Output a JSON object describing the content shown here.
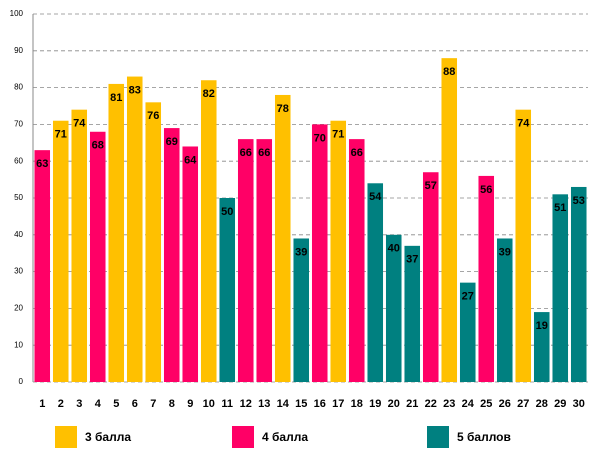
{
  "chart_data": {
    "type": "bar",
    "categories": [
      "1",
      "2",
      "3",
      "4",
      "5",
      "6",
      "7",
      "8",
      "9",
      "10",
      "11",
      "12",
      "13",
      "14",
      "15",
      "16",
      "17",
      "18",
      "19",
      "20",
      "21",
      "22",
      "23",
      "24",
      "25",
      "26",
      "27",
      "28",
      "29",
      "30"
    ],
    "series": [
      {
        "name": "3 балла",
        "color": "#ffc000",
        "values": [
          null,
          71,
          74,
          null,
          81,
          83,
          76,
          null,
          null,
          82,
          null,
          null,
          null,
          78,
          null,
          null,
          71,
          null,
          null,
          null,
          null,
          null,
          88,
          null,
          null,
          null,
          74,
          null,
          null,
          null
        ]
      },
      {
        "name": "4 балла",
        "color": "#ff0066",
        "values": [
          63,
          null,
          null,
          68,
          null,
          null,
          null,
          69,
          64,
          null,
          null,
          66,
          66,
          null,
          null,
          70,
          null,
          66,
          null,
          null,
          null,
          57,
          null,
          null,
          56,
          null,
          null,
          null,
          null,
          null
        ]
      },
      {
        "name": "5 баллов",
        "color": "#008080",
        "values": [
          null,
          null,
          null,
          null,
          null,
          null,
          null,
          null,
          null,
          null,
          50,
          null,
          null,
          null,
          39,
          null,
          null,
          null,
          54,
          40,
          37,
          null,
          null,
          27,
          null,
          39,
          null,
          19,
          51,
          53
        ]
      }
    ],
    "ylim": [
      0,
      100
    ],
    "yticks": [
      0,
      10,
      20,
      30,
      40,
      50,
      60,
      70,
      80,
      90,
      100
    ],
    "grid": true
  }
}
